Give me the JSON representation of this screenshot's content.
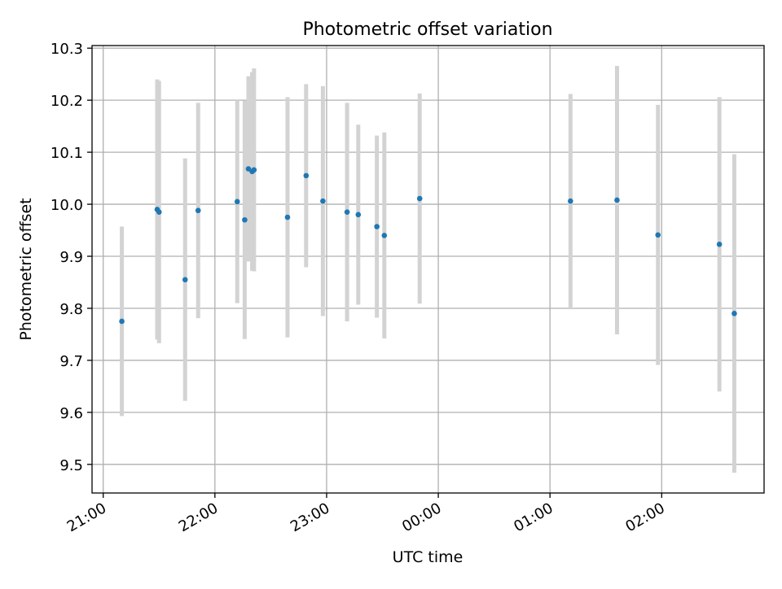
{
  "chart_data": {
    "type": "scatter",
    "title": "Photometric offset variation",
    "xlabel": "UTC time",
    "ylabel": "Photometric offset",
    "x_tick_labels": [
      "21:00",
      "22:00",
      "23:00",
      "00:00",
      "01:00",
      "02:00"
    ],
    "y_tick_labels": [
      "9.5",
      "9.6",
      "9.7",
      "9.8",
      "9.9",
      "10.0",
      "10.1",
      "10.2",
      "10.3"
    ],
    "y_ticks": [
      9.5,
      9.6,
      9.7,
      9.8,
      9.9,
      10.0,
      10.1,
      10.2,
      10.3
    ],
    "xlim": [
      "20:54",
      "02:55"
    ],
    "ylim": [
      9.445,
      10.305
    ],
    "grid": true,
    "error_bar_color": "#d3d3d3",
    "marker_color": "#1f77b4",
    "points": [
      {
        "t": "21:10",
        "y": 9.775,
        "lo": 9.593,
        "hi": 9.957
      },
      {
        "t": "21:29",
        "y": 9.99,
        "lo": 9.74,
        "hi": 10.24
      },
      {
        "t": "21:30",
        "y": 9.985,
        "lo": 9.733,
        "hi": 10.237
      },
      {
        "t": "21:44",
        "y": 9.855,
        "lo": 9.622,
        "hi": 10.088
      },
      {
        "t": "21:51",
        "y": 9.988,
        "lo": 9.781,
        "hi": 10.195
      },
      {
        "t": "22:12",
        "y": 10.005,
        "lo": 9.81,
        "hi": 10.2
      },
      {
        "t": "22:16",
        "y": 9.97,
        "lo": 9.741,
        "hi": 10.199
      },
      {
        "t": "22:18",
        "y": 10.068,
        "lo": 9.89,
        "hi": 10.246
      },
      {
        "t": "22:20",
        "y": 10.063,
        "lo": 9.872,
        "hi": 10.254
      },
      {
        "t": "22:21",
        "y": 10.066,
        "lo": 9.871,
        "hi": 10.261
      },
      {
        "t": "22:39",
        "y": 9.975,
        "lo": 9.744,
        "hi": 10.206
      },
      {
        "t": "22:49",
        "y": 10.055,
        "lo": 9.879,
        "hi": 10.231
      },
      {
        "t": "22:58",
        "y": 10.006,
        "lo": 9.785,
        "hi": 10.227
      },
      {
        "t": "23:11",
        "y": 9.985,
        "lo": 9.775,
        "hi": 10.195
      },
      {
        "t": "23:17",
        "y": 9.98,
        "lo": 9.807,
        "hi": 10.153
      },
      {
        "t": "23:27",
        "y": 9.957,
        "lo": 9.782,
        "hi": 10.132
      },
      {
        "t": "23:31",
        "y": 9.94,
        "lo": 9.742,
        "hi": 10.138
      },
      {
        "t": "23:50",
        "y": 10.011,
        "lo": 9.809,
        "hi": 10.213
      },
      {
        "t": "01:11",
        "y": 10.006,
        "lo": 9.8,
        "hi": 10.212
      },
      {
        "t": "01:36",
        "y": 10.008,
        "lo": 9.75,
        "hi": 10.266
      },
      {
        "t": "01:58",
        "y": 9.941,
        "lo": 9.691,
        "hi": 10.191
      },
      {
        "t": "02:31",
        "y": 9.923,
        "lo": 9.64,
        "hi": 10.206
      },
      {
        "t": "02:39",
        "y": 9.79,
        "lo": 9.484,
        "hi": 10.096
      }
    ]
  }
}
